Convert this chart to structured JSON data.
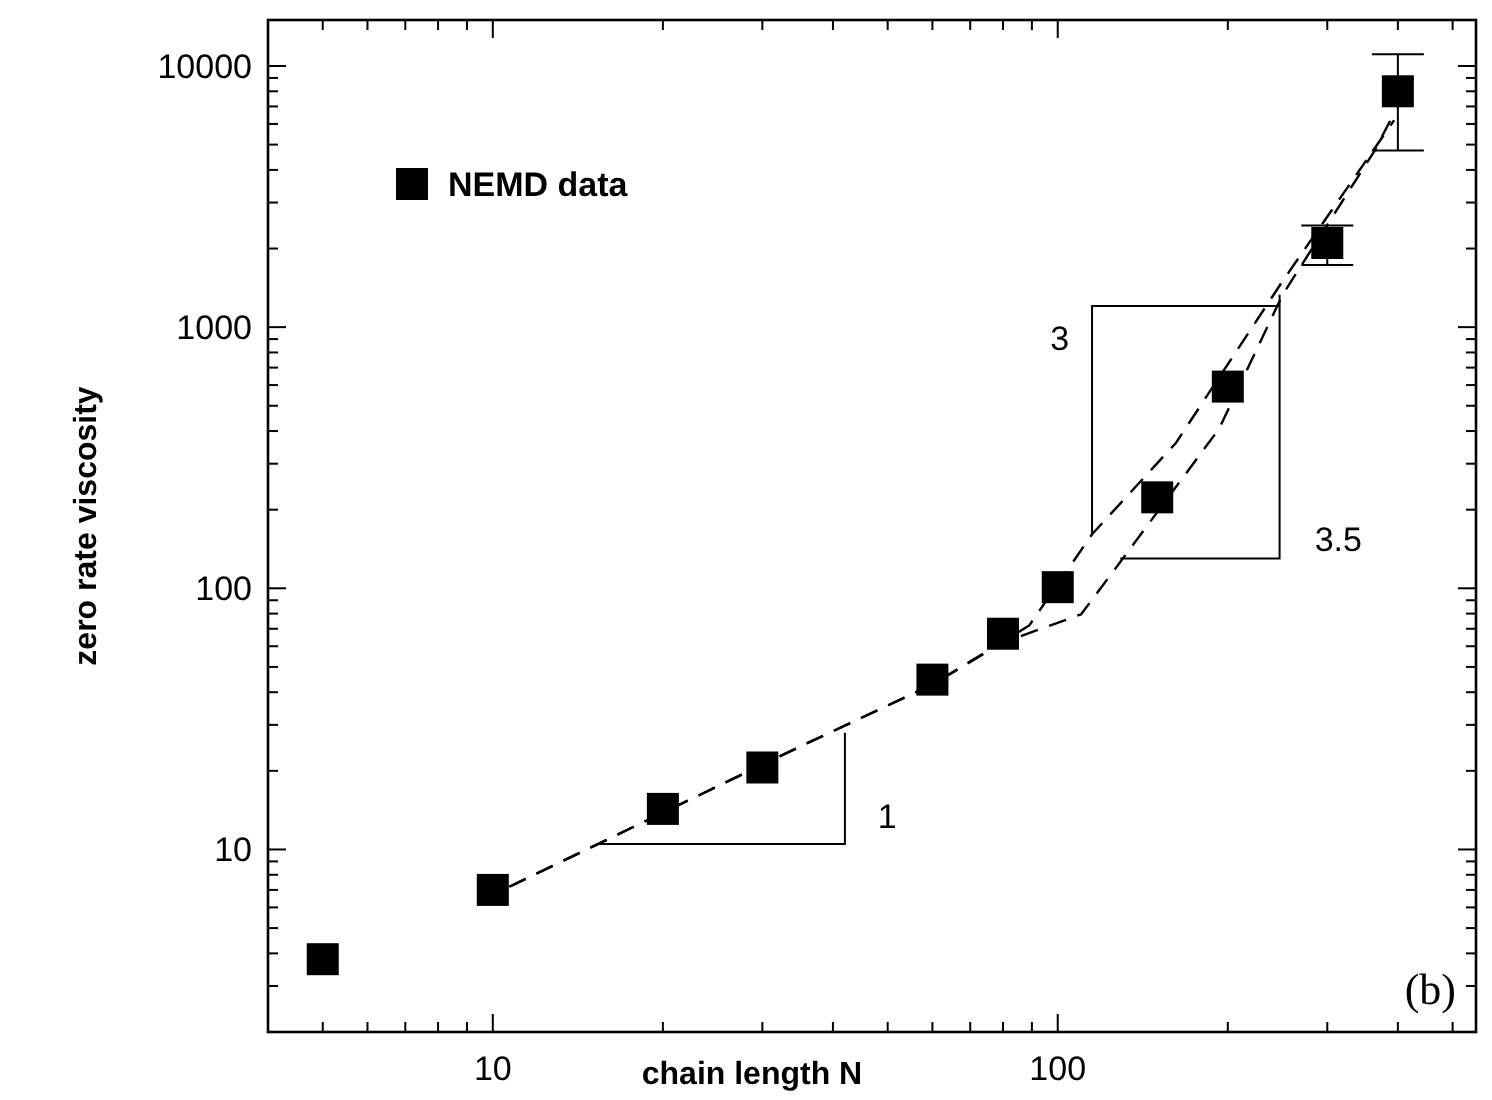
{
  "chart_data": {
    "type": "scatter",
    "xlabel": "chain length N",
    "ylabel": "zero rate viscosity",
    "log": "xy",
    "legend": "top left",
    "xlim": [
      4,
      550
    ],
    "xticks": [
      {
        "value": 4,
        "label": null
      },
      {
        "value": 5,
        "label": null
      },
      {
        "value": 6,
        "label": null
      },
      {
        "value": 7,
        "label": null
      },
      {
        "value": 8,
        "label": null
      },
      {
        "value": 9,
        "label": null
      },
      10,
      {
        "value": 20,
        "label": null
      },
      {
        "value": 30,
        "label": null
      },
      {
        "value": 40,
        "label": null
      },
      {
        "value": 50,
        "label": null
      },
      {
        "value": 60,
        "label": null
      },
      {
        "value": 70,
        "label": null
      },
      {
        "value": 80,
        "label": null
      },
      {
        "value": 90,
        "label": null
      },
      100,
      {
        "value": 200,
        "label": null
      },
      {
        "value": 300,
        "label": null
      },
      {
        "value": 400,
        "label": null
      },
      {
        "value": 500,
        "label": null
      }
    ],
    "ylim": [
      2,
      15000
    ],
    "yticks": [
      {
        "value": 2,
        "label": null
      },
      {
        "value": 3,
        "label": null
      },
      {
        "value": 4,
        "label": null
      },
      {
        "value": 5,
        "label": null
      },
      {
        "value": 6,
        "label": null
      },
      {
        "value": 7,
        "label": null
      },
      {
        "value": 8,
        "label": null
      },
      {
        "value": 9,
        "label": null
      },
      10,
      {
        "value": 20,
        "label": null
      },
      {
        "value": 30,
        "label": null
      },
      {
        "value": 40,
        "label": null
      },
      {
        "value": 50,
        "label": null
      },
      {
        "value": 60,
        "label": null
      },
      {
        "value": 70,
        "label": null
      },
      {
        "value": 80,
        "label": null
      },
      {
        "value": 90,
        "label": null
      },
      100,
      {
        "value": 200,
        "label": null
      },
      {
        "value": 300,
        "label": null
      },
      {
        "value": 400,
        "label": null
      },
      {
        "value": 500,
        "label": null
      },
      {
        "value": 600,
        "label": null
      },
      {
        "value": 700,
        "label": null
      },
      {
        "value": 800,
        "label": null
      },
      {
        "value": 900,
        "label": null
      },
      1000,
      {
        "value": 2000,
        "label": null
      },
      {
        "value": 3000,
        "label": null
      },
      {
        "value": 4000,
        "label": null
      },
      {
        "value": 5000,
        "label": null
      },
      {
        "value": 6000,
        "label": null
      },
      {
        "value": 7000,
        "label": null
      },
      {
        "value": 8000,
        "label": null
      },
      {
        "value": 9000,
        "label": null
      },
      10000
    ],
    "series": [
      {
        "name": "NEMD data",
        "marker": "square",
        "color": "#000000",
        "x": [
          5,
          10,
          20,
          30,
          60,
          80,
          100,
          150,
          200,
          300,
          400
        ],
        "values": [
          3.8,
          7,
          14.3,
          20.6,
          44.7,
          67,
          101,
          223,
          592,
          2100,
          8000
        ],
        "errors": [
          null,
          null,
          null,
          null,
          null,
          null,
          null,
          null,
          null,
          [
            1730,
            2450
          ],
          [
            4750,
            11100
          ]
        ]
      },
      {
        "type": "line",
        "marker": "none",
        "color": "#000000",
        "line_style": "dashed",
        "x": [
          10.7,
          34.6,
          60,
          89,
          115,
          162,
          250,
          394
        ],
        "values": [
          7.2,
          24.5,
          42.8,
          72,
          161,
          361,
          1500,
          6200
        ]
      },
      {
        "type": "line",
        "marker": "none",
        "color": "#000000",
        "line_style": "dashed",
        "x": [
          10.7,
          34.6,
          60,
          80,
          110,
          129,
          193,
          250,
          363,
          394
        ],
        "values": [
          7.2,
          24.5,
          42.8,
          62,
          79.5,
          126,
          408,
          1330,
          4700,
          6600
        ]
      }
    ],
    "annotations": [
      "1",
      "3",
      "3.5",
      "(b)"
    ]
  }
}
